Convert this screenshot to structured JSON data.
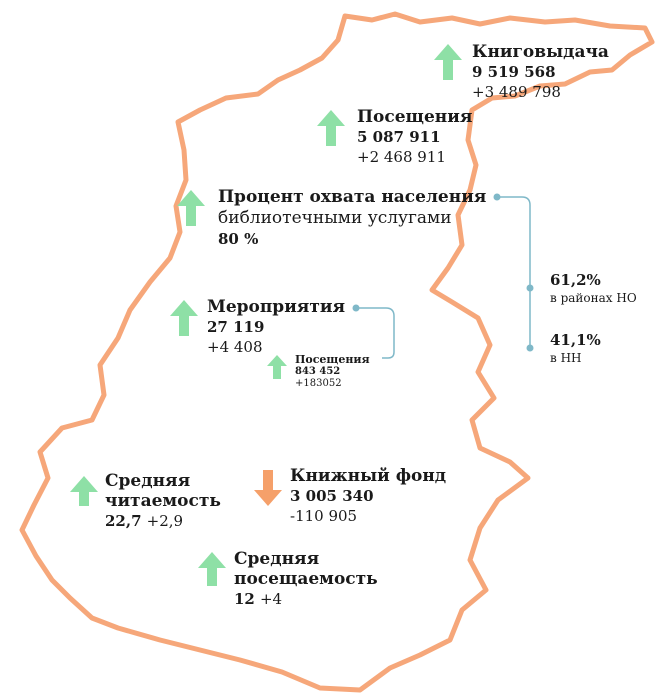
{
  "items": [
    {
      "title": [
        "Книговыдача"
      ],
      "value": "9 519 568",
      "change": "+3 489 798"
    },
    {
      "title": [
        "Посещения"
      ],
      "value": "5 087 911",
      "change": "+2 468 911"
    },
    {
      "title": [
        "Процент охвата населения"
      ],
      "subtitle": "библиотечными услугами",
      "value": "80 %",
      "breakdown": [
        {
          "value": "61,2%",
          "label": "в районах НО"
        },
        {
          "value": "41,1%",
          "label": "в НН"
        }
      ]
    },
    {
      "title": [
        "Мероприятия"
      ],
      "value": "27 119",
      "change": "+4 408",
      "sub": {
        "title": "Посещения",
        "value": "843 452",
        "change": "+183052"
      }
    },
    {
      "title": [
        "Средняя",
        "читаемость"
      ],
      "value": "22,7",
      "change": "+2,9"
    },
    {
      "title": [
        "Книжный фонд"
      ],
      "value": "3 005 340",
      "change": "-110 905"
    },
    {
      "title": [
        "Средняя",
        "посещаемость"
      ],
      "value": "12",
      "change": "+4"
    }
  ]
}
